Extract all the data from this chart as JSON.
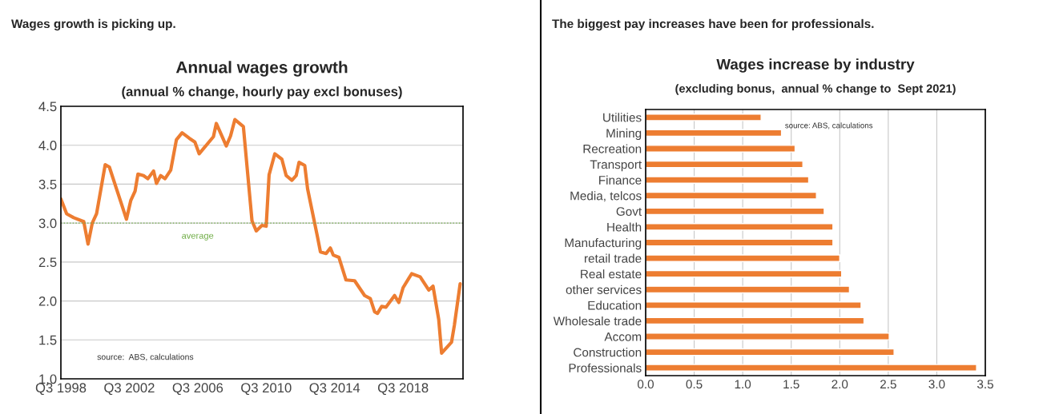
{
  "chart_data": [
    {
      "type": "line",
      "title": "Annual wages growth",
      "subtitle": "(annual % change, hourly pay excl bonuses)",
      "annotations": [
        "Wages growth is picking up.",
        "source:  ABS, calculations"
      ],
      "series": [
        {
          "color": "#ed7d31",
          "x": [
            "1998-07",
            "1998-11",
            "1999-04",
            "1999-11",
            "2000-02",
            "2000-05",
            "2000-08",
            "2001-02",
            "2001-05",
            "2001-10",
            "2002-05",
            "2002-08",
            "2002-11",
            "2003-01",
            "2003-05",
            "2003-08",
            "2003-12",
            "2004-02",
            "2004-05",
            "2004-08",
            "2004-12",
            "2005-04",
            "2005-08",
            "2006-01",
            "2006-05",
            "2006-08",
            "2007-06",
            "2007-08",
            "2008-03",
            "2008-06",
            "2008-09",
            "2009-03",
            "2009-09",
            "2009-12",
            "2010-04",
            "2010-07",
            "2010-09",
            "2011-01",
            "2011-06",
            "2011-09",
            "2012-01",
            "2012-04",
            "2012-06",
            "2012-10",
            "2012-12",
            "2013-07",
            "2013-09",
            "2014-01",
            "2014-04",
            "2014-06",
            "2014-10",
            "2015-03",
            "2015-09",
            "2016-04",
            "2016-08",
            "2016-11",
            "2017-01",
            "2017-04",
            "2017-07",
            "2018-01",
            "2018-04",
            "2018-07",
            "2019-01",
            "2019-07",
            "2020-01",
            "2020-04",
            "2020-08",
            "2020-10",
            "2021-05",
            "2021-07",
            "2021-11"
          ],
          "values": [
            3.31,
            3.12,
            3.07,
            3.02,
            2.73,
            3.0,
            3.12,
            3.75,
            3.72,
            3.44,
            3.05,
            3.29,
            3.41,
            3.63,
            3.61,
            3.57,
            3.67,
            3.51,
            3.61,
            3.57,
            3.68,
            4.07,
            4.16,
            4.09,
            4.04,
            3.89,
            4.11,
            4.28,
            3.99,
            4.12,
            4.33,
            4.24,
            3.03,
            2.9,
            2.97,
            2.96,
            3.62,
            3.89,
            3.82,
            3.61,
            3.55,
            3.61,
            3.78,
            3.74,
            3.44,
            2.82,
            2.63,
            2.61,
            2.68,
            2.59,
            2.56,
            2.27,
            2.26,
            2.07,
            2.03,
            1.86,
            1.84,
            1.93,
            1.92,
            2.07,
            1.98,
            2.17,
            2.35,
            2.31,
            2.14,
            2.19,
            1.76,
            1.33,
            1.47,
            1.69,
            2.22
          ]
        }
      ],
      "xlim": [
        "1998-07",
        "2022-01"
      ],
      "xticks": [
        {
          "value": "1998-07",
          "label": "Q3 1998"
        },
        {
          "value": "2002-07",
          "label": "Q3 2002"
        },
        {
          "value": "2006-07",
          "label": "Q3 2006"
        },
        {
          "value": "2010-07",
          "label": "Q3 2010"
        },
        {
          "value": "2014-07",
          "label": "Q3 2014"
        },
        {
          "value": "2018-07",
          "label": "Q3 2018"
        }
      ],
      "ylim": [
        1.0,
        4.5
      ],
      "yticks": [
        {
          "value": 1.0,
          "label": "1.0"
        },
        1.5,
        {
          "value": 2.0,
          "label": "2.0"
        },
        2.5,
        {
          "value": 3.0,
          "label": "3.0"
        },
        3.5,
        {
          "value": 4.0,
          "label": "4.0"
        },
        4.5
      ],
      "ref_lines": [
        {
          "axis": "y",
          "value": 3.0,
          "label": "average",
          "color": "#70ad47",
          "line_style": "dotted"
        }
      ],
      "grid": "y",
      "line_style": "solid",
      "legend": false
    },
    {
      "type": "bar",
      "orientation": "horizontal",
      "title": "Wages increase by industry",
      "subtitle": "(excluding bonus,  annual % change to  Sept 2021)",
      "annotations": [
        "The biggest pay increases have been for professionals.",
        "source: ABS, calculations"
      ],
      "categories": [
        "Utilities",
        "Mining",
        "Recreation",
        "Transport",
        "Finance",
        "Media, telcos",
        "Govt",
        "Health",
        "Manufacturing",
        "retail trade",
        "Real estate",
        "other services",
        "Education",
        "Wholesale trade",
        "Accom",
        "Construction",
        "Professionals"
      ],
      "values": [
        1.19,
        1.4,
        1.54,
        1.62,
        1.68,
        1.76,
        1.84,
        1.93,
        1.93,
        2.0,
        2.02,
        2.1,
        2.22,
        2.25,
        2.51,
        2.56,
        3.41
      ],
      "color": "#ed7d31",
      "xlim": [
        0.0,
        3.5
      ],
      "xticks": [
        {
          "value": 0.0,
          "label": "0.0"
        },
        0.5,
        {
          "value": 1.0,
          "label": "1.0"
        },
        1.5,
        {
          "value": 2.0,
          "label": "2.0"
        },
        2.5,
        {
          "value": 3.0,
          "label": "3.0"
        },
        3.5
      ],
      "grid": "x",
      "legend": false
    }
  ]
}
